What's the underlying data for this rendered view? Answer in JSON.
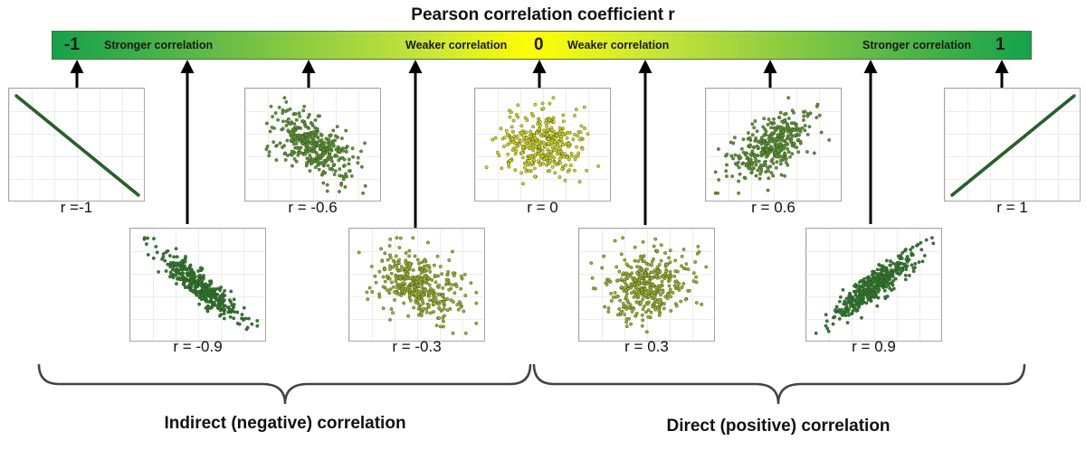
{
  "title": "Pearson correlation coefficient r",
  "scale": {
    "left_value": "-1",
    "center_value": "0",
    "right_value": "1",
    "left_strong": "Stronger correlation",
    "left_weak": "Weaker correlation",
    "right_weak": "Weaker correlation",
    "right_strong": "Stronger correlation",
    "colors": {
      "ends": "#15a24a",
      "center": "#ffff00"
    }
  },
  "panels": [
    {
      "label": "r =-1",
      "r": -1,
      "row": "top",
      "point_color": "#1e7d3a"
    },
    {
      "label": "r = -0.9",
      "r": -0.9,
      "row": "bottom",
      "point_color": "#2f7f33"
    },
    {
      "label": "r = -0.6",
      "r": -0.6,
      "row": "top",
      "point_color": "#5e9536"
    },
    {
      "label": "r = -0.3",
      "r": -0.3,
      "row": "bottom",
      "point_color": "#9db02c"
    },
    {
      "label": "r = 0",
      "r": 0,
      "row": "top",
      "point_color": "#d6d418"
    },
    {
      "label": "r = 0.3",
      "r": 0.3,
      "row": "bottom",
      "point_color": "#9db02c"
    },
    {
      "label": "r = 0.6",
      "r": 0.6,
      "row": "top",
      "point_color": "#5e9536"
    },
    {
      "label": "r = 0.9",
      "r": 0.9,
      "row": "bottom",
      "point_color": "#2f7f33"
    },
    {
      "label": "r = 1",
      "r": 1,
      "row": "top",
      "point_color": "#1e7d3a"
    }
  ],
  "groups": {
    "negative": "Indirect (negative) correlation",
    "positive": "Direct (positive) correlation"
  }
}
